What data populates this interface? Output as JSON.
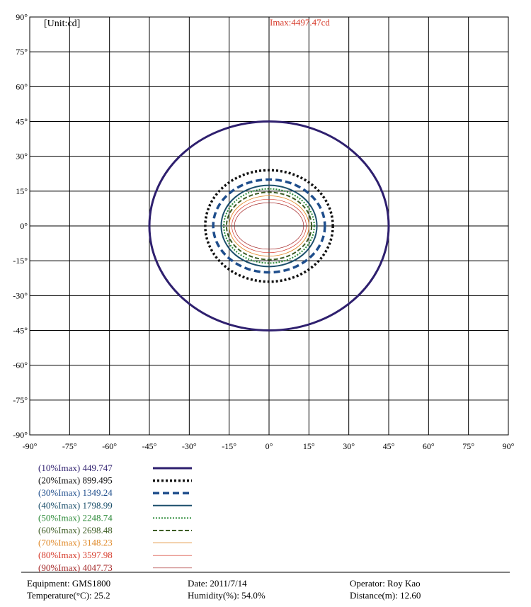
{
  "chart_data": {
    "type": "contour",
    "unit_label": "[Unit:cd]",
    "imax_label": "Imax:4497.47cd",
    "xlim": [
      -90,
      90
    ],
    "ylim": [
      -90,
      90
    ],
    "grid": true,
    "x_ticks": [
      "-90°",
      "-75°",
      "-60°",
      "-45°",
      "-30°",
      "-15°",
      "0°",
      "15°",
      "30°",
      "45°",
      "60°",
      "75°",
      "90°"
    ],
    "y_ticks": [
      "90°",
      "75°",
      "60°",
      "45°",
      "30°",
      "15°",
      "0°",
      "-15°",
      "-30°",
      "-45°",
      "-60°",
      "-75°",
      "-90°"
    ],
    "series": [
      {
        "name": "(10%Imax) 449.747",
        "rx": 45,
        "ry": 45,
        "color": "#2e1f6e"
      },
      {
        "name": "(20%Imax) 899.495",
        "rx": 24,
        "ry": 24,
        "color": "#111111"
      },
      {
        "name": "(30%Imax) 1349.24",
        "rx": 21,
        "ry": 20,
        "color": "#1f4e8c"
      },
      {
        "name": "(40%Imax) 1798.99",
        "rx": 18,
        "ry": 17.5,
        "color": "#1b4f6b"
      },
      {
        "name": "(50%Imax) 2248.74",
        "rx": 17,
        "ry": 16,
        "color": "#2e8b3a"
      },
      {
        "name": "(60%Imax) 2698.48",
        "rx": 16,
        "ry": 14.5,
        "color": "#3d5c24"
      },
      {
        "name": "(70%Imax) 3148.23",
        "rx": 15,
        "ry": 13,
        "color": "#e08a2a"
      },
      {
        "name": "(80%Imax) 3597.98",
        "rx": 14,
        "ry": 11.5,
        "color": "#d63a2a"
      },
      {
        "name": "(90%Imax) 4047.73",
        "rx": 13,
        "ry": 10,
        "color": "#a52a2a"
      }
    ]
  },
  "footer": {
    "equipment": "Equipment: GMS1800",
    "temperature": "Temperature(°C): 25.2",
    "date": "Date: 2011/7/14",
    "humidity": "Humidity(%): 54.0%",
    "operator": "Operator: Roy Kao",
    "distance": "Distance(m): 12.60"
  }
}
